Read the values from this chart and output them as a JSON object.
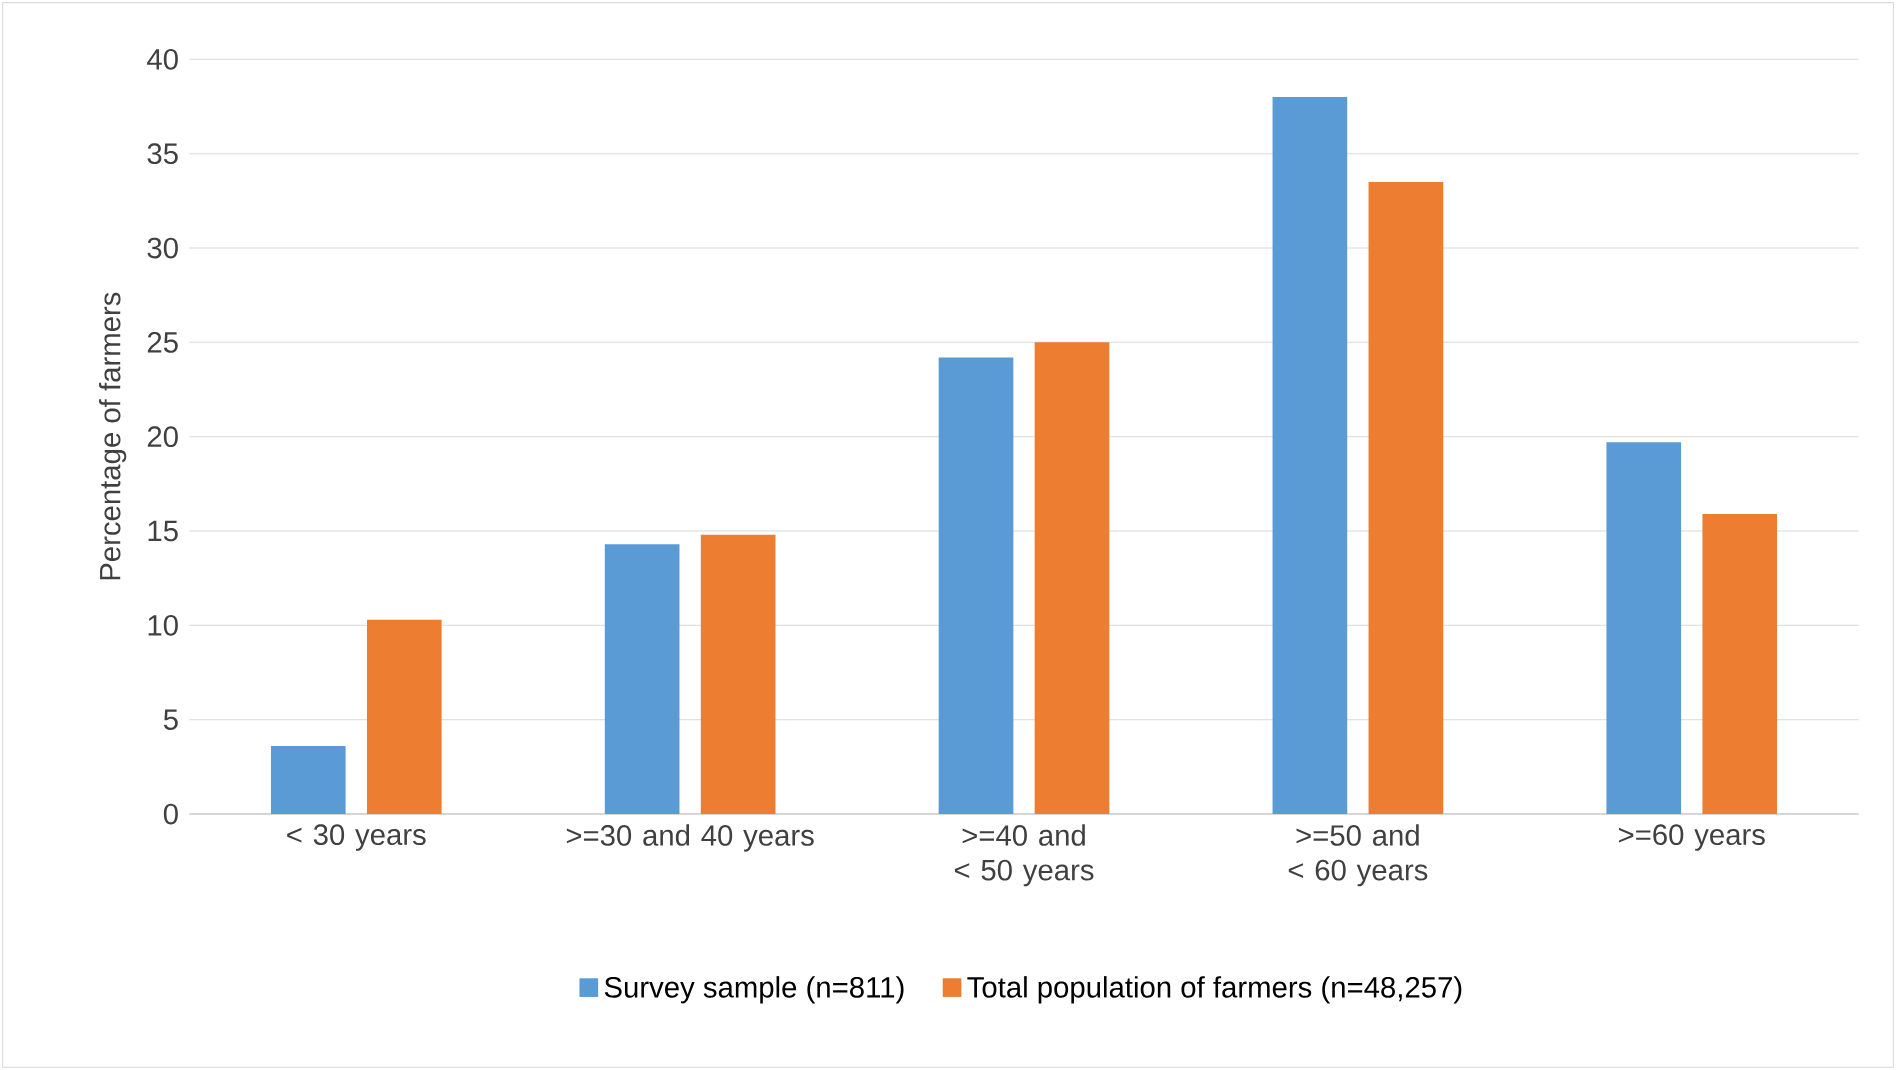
{
  "chart_data": {
    "type": "bar",
    "ylabel": "Percentage of farmers",
    "categories": [
      "< 30 years",
      ">=30 and 40 years",
      ">=40 and < 50 years",
      ">=50 and < 60 years",
      ">=60 years"
    ],
    "series": [
      {
        "name": "Survey sample (n=811)",
        "color": "#5b9bd5",
        "values": [
          3.6,
          14.3,
          24.2,
          38.0,
          19.7
        ]
      },
      {
        "name": "Total population of farmers (n=48,257)",
        "color": "#ed7d31",
        "values": [
          10.3,
          14.8,
          25.0,
          33.5,
          15.9
        ]
      }
    ],
    "ylim": [
      0,
      40
    ],
    "yticks": [
      0,
      5,
      10,
      15,
      20,
      25,
      30,
      35,
      40
    ],
    "grid": "y",
    "legend": "bottom"
  }
}
